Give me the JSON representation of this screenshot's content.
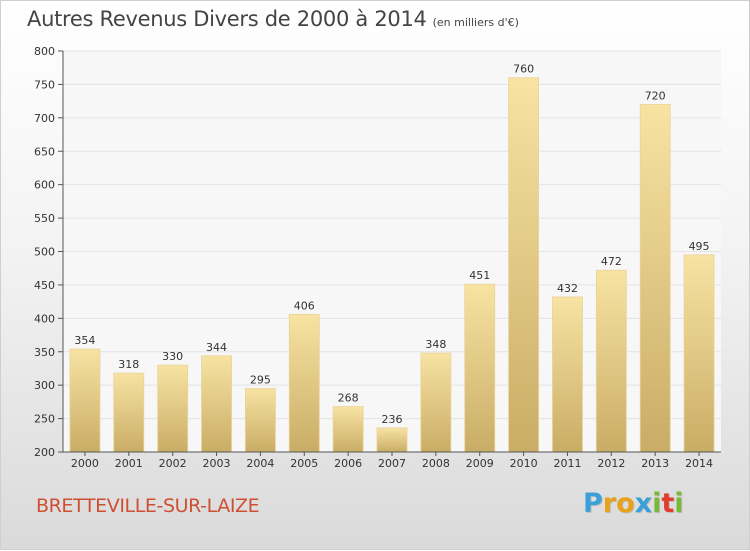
{
  "title": "Autres Revenus Divers de 2000 à 2014",
  "subtitle": "(en milliers d'€)",
  "city": "BRETTEVILLE-SUR-LAIZE",
  "logo": {
    "letters": [
      "P",
      "r",
      "o",
      "x",
      "i",
      "t",
      "i"
    ],
    "colors": [
      "#3aa0d8",
      "#e8a21a",
      "#e8a21a",
      "#3aa0d8",
      "#7ab837",
      "#e23c2c",
      "#7ab837"
    ]
  },
  "colors": {
    "bar_light": "#f8e3a3",
    "bar_dark": "#c9ad66",
    "axis": "#555555",
    "grid": "#e4e4e4",
    "city": "#cf4f33"
  },
  "chart_data": {
    "type": "bar",
    "categories": [
      "2000",
      "2001",
      "2002",
      "2003",
      "2004",
      "2005",
      "2006",
      "2007",
      "2008",
      "2009",
      "2010",
      "2011",
      "2012",
      "2013",
      "2014"
    ],
    "values": [
      354,
      318,
      330,
      344,
      295,
      406,
      268,
      236,
      348,
      451,
      760,
      432,
      472,
      720,
      495
    ],
    "ylim": [
      200,
      800
    ],
    "yticks": [
      200,
      250,
      300,
      350,
      400,
      450,
      500,
      550,
      600,
      650,
      700,
      750,
      800
    ],
    "grid": "horizontal",
    "data_labels": true
  }
}
